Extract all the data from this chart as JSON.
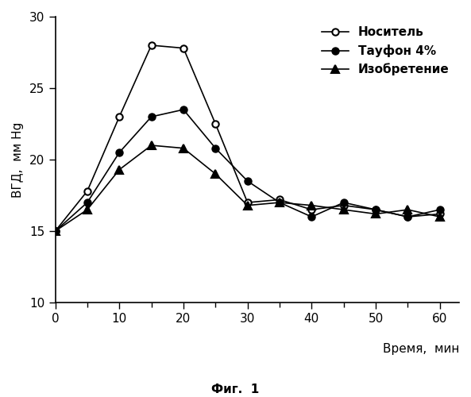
{
  "x": [
    0,
    5,
    10,
    15,
    20,
    25,
    30,
    35,
    40,
    45,
    50,
    55,
    60
  ],
  "nositel": [
    15.0,
    17.8,
    23.0,
    28.0,
    27.8,
    22.5,
    17.0,
    17.2,
    16.5,
    16.8,
    16.5,
    16.0,
    16.2
  ],
  "taufon": [
    15.0,
    17.0,
    20.5,
    23.0,
    23.5,
    20.8,
    18.5,
    17.0,
    16.0,
    17.0,
    16.5,
    16.0,
    16.5
  ],
  "izobr": [
    15.0,
    16.5,
    19.3,
    21.0,
    20.8,
    19.0,
    16.8,
    17.0,
    16.8,
    16.5,
    16.2,
    16.5,
    16.0
  ],
  "ylabel": "ВГД,  мм Hg",
  "xlabel": "Время,  мин",
  "caption": "Фиг.  1",
  "legend_nositel": "Носитель",
  "legend_taufon": "Тауфон 4%",
  "legend_izobr": "Изобретение",
  "ylim_min": 10,
  "ylim_max": 30,
  "xlim_min": 0,
  "xlim_max": 63,
  "yticks": [
    10,
    15,
    20,
    25,
    30
  ],
  "xticks_major": [
    0,
    10,
    20,
    30,
    40,
    50,
    60
  ],
  "xticks_minor": [
    0,
    5,
    10,
    15,
    20,
    25,
    30,
    35,
    40,
    45,
    50,
    55,
    60
  ]
}
